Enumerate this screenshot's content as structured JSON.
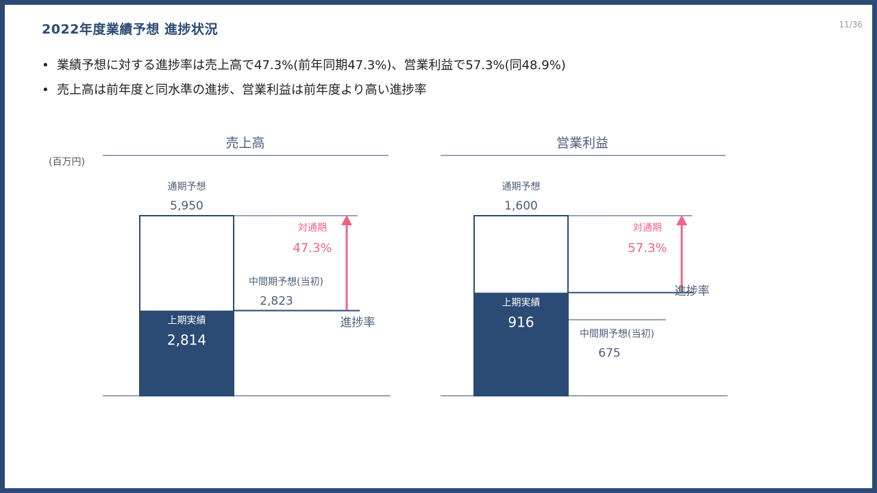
{
  "slide": {
    "title": "2022年度業績予想 進捗状況",
    "page": "11/36",
    "bullets": [
      "業績予想に対する進捗率は売上高で47.3%(前年同期47.3%)、営業利益で57.3%(同48.9%)",
      "売上高は前年度と同水準の進捗、営業利益は前年度より高い進捗率"
    ],
    "unit": "(百万円)"
  },
  "colors": {
    "navy": "#2b4a74",
    "pink": "#f06484",
    "text": "#4a5d7a"
  },
  "chart_data": [
    {
      "type": "bar",
      "title": "売上高",
      "forecast_label": "通期予想",
      "forecast_value": "5,950",
      "forecast": 5950,
      "actual_label": "上期実績",
      "actual_value": "2,814",
      "actual": 2814,
      "interim_label": "中間期予想(当初)",
      "interim_value": "2,823",
      "interim": 2823,
      "rate_label": "対通期",
      "rate_value": "47.3%",
      "progress_label": "進捗率"
    },
    {
      "type": "bar",
      "title": "営業利益",
      "forecast_label": "通期予想",
      "forecast_value": "1,600",
      "forecast": 1600,
      "actual_label": "上期実績",
      "actual_value": "916",
      "actual": 916,
      "interim_label": "中間期予想(当初)",
      "interim_value": "675",
      "interim": 675,
      "rate_label": "対通期",
      "rate_value": "57.3%",
      "progress_label": "進捗率"
    }
  ]
}
